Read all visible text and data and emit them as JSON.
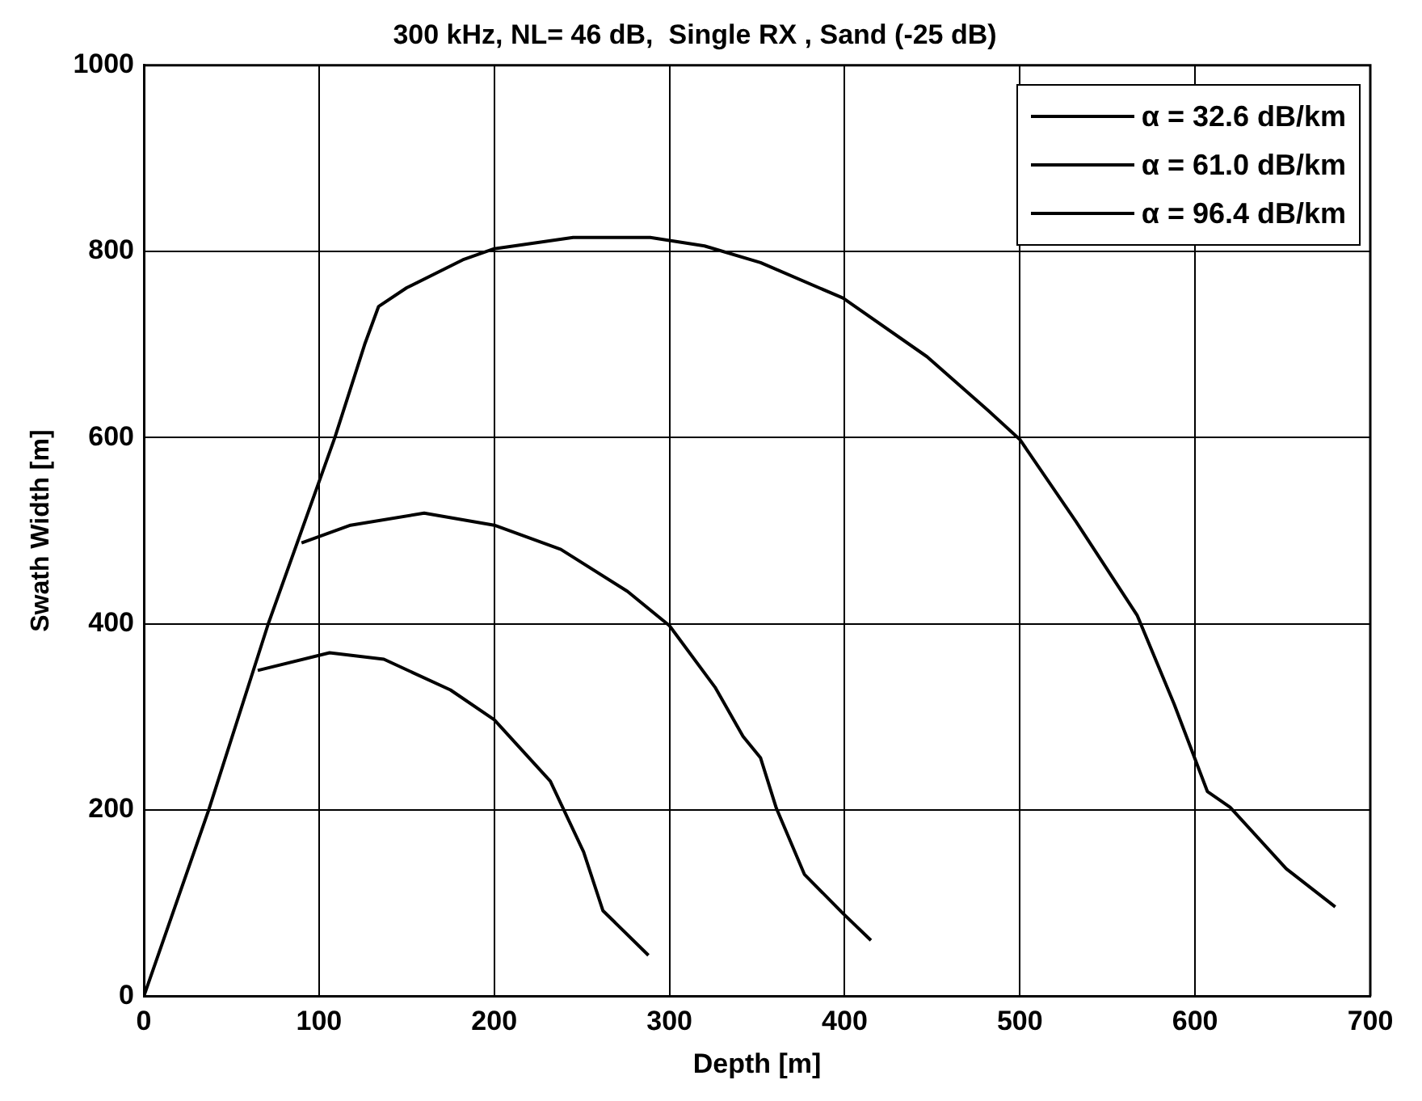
{
  "chart_data": {
    "type": "line",
    "title": "300 kHz, NL= 46 dB,  Single RX , Sand (-25 dB)",
    "xlabel": "Depth [m]",
    "ylabel": "Swath Width [m]",
    "xlim": [
      0,
      700
    ],
    "xticks": [
      0,
      100,
      200,
      300,
      400,
      500,
      600,
      700
    ],
    "ylim": [
      0,
      1000
    ],
    "yticks": [
      0,
      200,
      400,
      600,
      800,
      1000
    ],
    "grid": true,
    "legend": "top right",
    "line_style": "solid",
    "marker": "none",
    "series": [
      {
        "name": "α = 32.6 dB/km",
        "color": "#000000",
        "x": [
          0,
          37,
          71,
          109,
          126,
          134,
          150,
          182,
          200,
          245,
          289,
          320,
          352,
          399,
          447,
          482,
          500,
          532,
          567,
          588,
          607,
          620,
          652,
          680
        ],
        "values": [
          0,
          200,
          400,
          600,
          700,
          741,
          761,
          791,
          803,
          815,
          815,
          806,
          788,
          750,
          687,
          629,
          598,
          510,
          409,
          314,
          220,
          203,
          137,
          96
        ]
      },
      {
        "name": "α = 61.0 dB/km",
        "color": "#000000",
        "x": [
          90,
          118,
          160,
          200,
          238,
          276,
          300,
          326,
          342,
          352,
          361,
          377,
          399,
          415
        ],
        "values": [
          487,
          506,
          519,
          506,
          480,
          435,
          398,
          332,
          279,
          256,
          202,
          131,
          89,
          60
        ]
      },
      {
        "name": "α = 96.4 dB/km",
        "color": "#000000",
        "x": [
          65,
          106,
          137,
          175,
          200,
          232,
          251,
          262,
          288
        ],
        "values": [
          350,
          369,
          362,
          329,
          297,
          231,
          155,
          92,
          44
        ]
      }
    ]
  }
}
